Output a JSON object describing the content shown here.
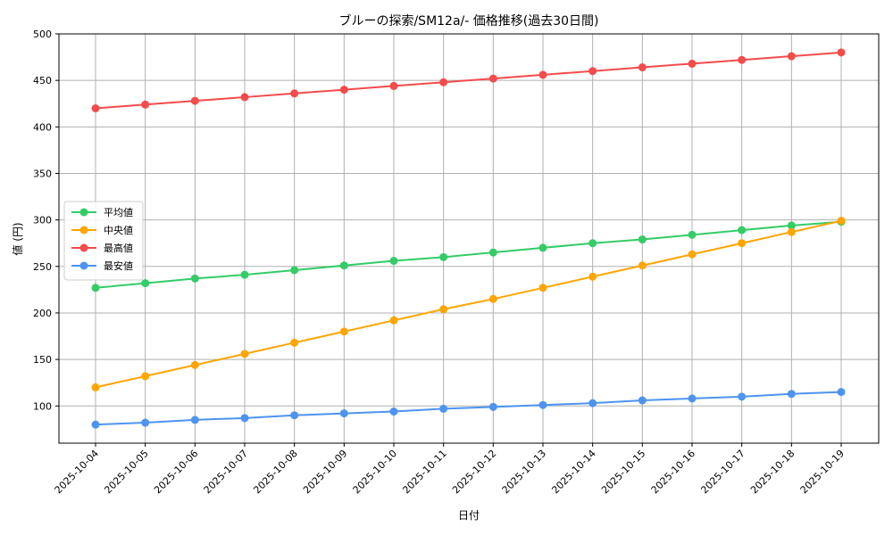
{
  "chart_data": {
    "type": "line",
    "title": "ブルーの探索/SM12a/- 価格推移(過去30日間)",
    "xlabel": "日付",
    "ylabel": "値 (円)",
    "ylim": [
      60,
      500
    ],
    "yticks": [
      100,
      150,
      200,
      250,
      300,
      350,
      400,
      450,
      500
    ],
    "grid": true,
    "legend_position": "center-left",
    "categories": [
      "2025-10-04",
      "2025-10-05",
      "2025-10-06",
      "2025-10-07",
      "2025-10-08",
      "2025-10-09",
      "2025-10-10",
      "2025-10-11",
      "2025-10-12",
      "2025-10-13",
      "2025-10-14",
      "2025-10-15",
      "2025-10-16",
      "2025-10-17",
      "2025-10-18",
      "2025-10-19"
    ],
    "series": [
      {
        "name": "平均値",
        "color": "#33cc66",
        "values": [
          227,
          232,
          237,
          241,
          246,
          251,
          256,
          260,
          265,
          270,
          275,
          279,
          284,
          289,
          294,
          298
        ]
      },
      {
        "name": "中央値",
        "color": "#ffa500",
        "values": [
          120,
          132,
          144,
          156,
          168,
          180,
          192,
          204,
          215,
          227,
          239,
          251,
          263,
          275,
          287,
          299
        ]
      },
      {
        "name": "最高値",
        "color": "#f44b4b",
        "values": [
          420,
          424,
          428,
          432,
          436,
          440,
          444,
          448,
          452,
          456,
          460,
          464,
          468,
          472,
          476,
          480
        ]
      },
      {
        "name": "最安値",
        "color": "#4d94f0",
        "values": [
          80,
          82,
          85,
          87,
          90,
          92,
          94,
          97,
          99,
          101,
          103,
          106,
          108,
          110,
          113,
          115
        ]
      }
    ]
  }
}
